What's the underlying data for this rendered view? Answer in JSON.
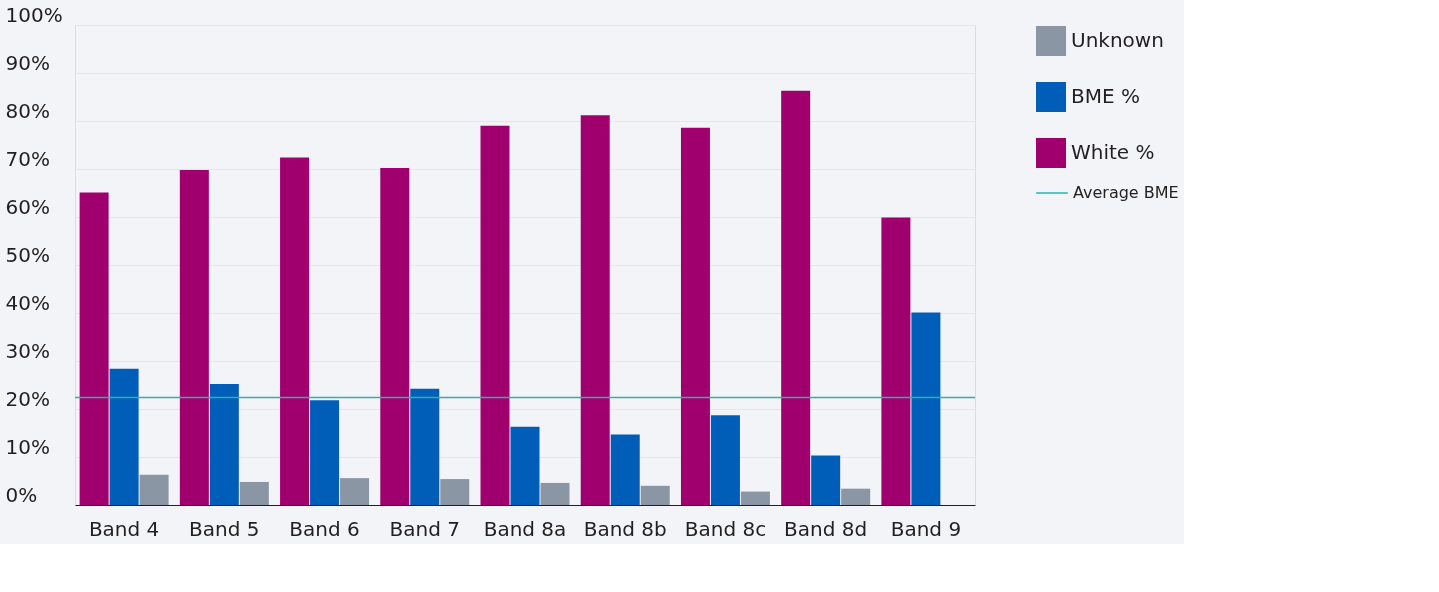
{
  "chart_data": {
    "type": "bar",
    "categories": [
      "Band 4",
      "Band 5",
      "Band 6",
      "Band 7",
      "Band 8a",
      "Band 8b",
      "Band 8c",
      "Band 8d",
      "Band 9"
    ],
    "series": [
      {
        "name": "White %",
        "color": "#a0006e",
        "values": [
          65.1,
          69.8,
          72.4,
          70.2,
          79.0,
          81.2,
          78.6,
          86.3,
          59.9
        ]
      },
      {
        "name": "BME %",
        "color": "#005eb8",
        "values": [
          28.4,
          25.2,
          21.8,
          24.2,
          16.3,
          14.7,
          18.7,
          10.3,
          40.1
        ]
      },
      {
        "name": "Unknown",
        "color": "#8a96a3",
        "values": [
          6.3,
          4.8,
          5.6,
          5.4,
          4.6,
          4.0,
          2.8,
          3.4,
          null
        ]
      }
    ],
    "ylim": [
      0,
      100
    ],
    "yticks": [
      {
        "value": 0,
        "label": "0%"
      },
      {
        "value": 10,
        "label": "10%"
      },
      {
        "value": 20,
        "label": "20%"
      },
      {
        "value": 30,
        "label": "30%"
      },
      {
        "value": 40,
        "label": "40%"
      },
      {
        "value": 50,
        "label": "50%"
      },
      {
        "value": 60,
        "label": "60%"
      },
      {
        "value": 70,
        "label": "70%"
      },
      {
        "value": 80,
        "label": "80%"
      },
      {
        "value": 90,
        "label": "90%"
      },
      {
        "value": 100,
        "label": "100%"
      }
    ],
    "ref_lines": [
      {
        "axis": "y",
        "value": 22.4,
        "label": "Average BME",
        "color": "#2bb3a8"
      }
    ],
    "grid": "y",
    "legend": "right"
  }
}
